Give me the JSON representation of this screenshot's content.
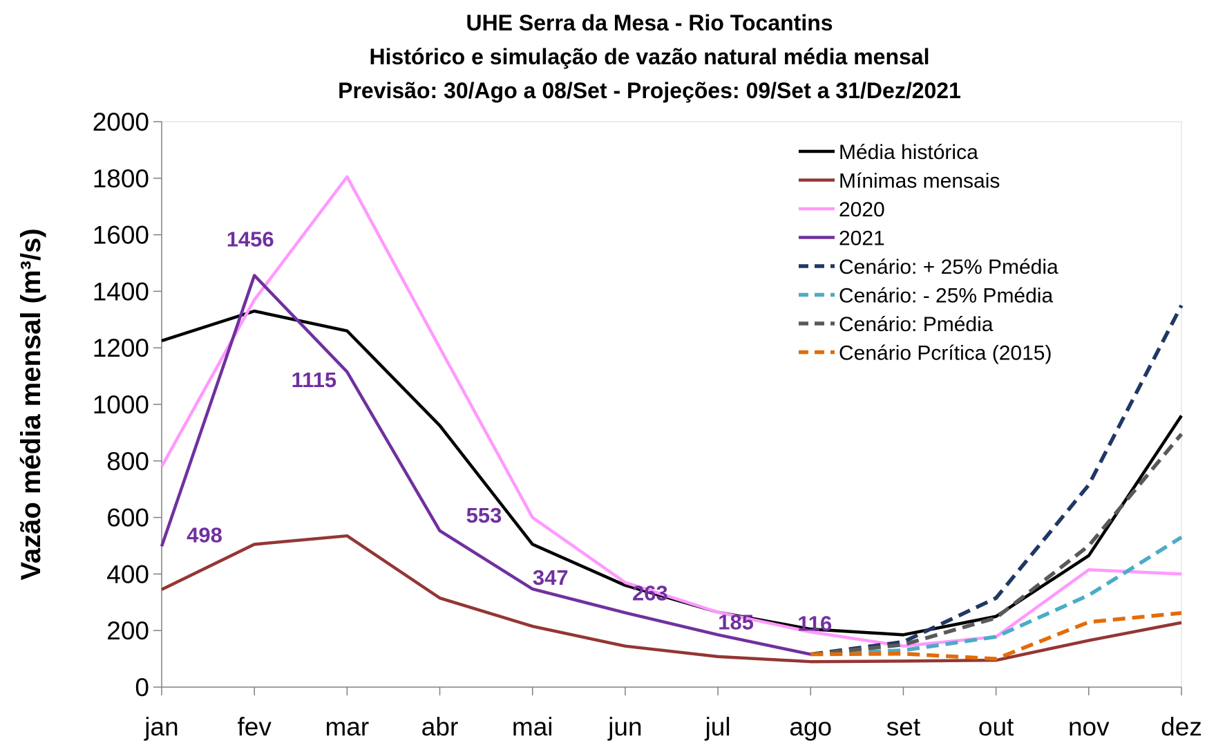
{
  "chart_data": {
    "type": "line",
    "title": [
      "UHE Serra da Mesa - Rio Tocantins",
      "Histórico e simulação de vazão natural média mensal",
      "Previsão: 30/Ago a 08/Set - Projeções:  09/Set a 31/Dez/2021"
    ],
    "xlabel": "",
    "ylabel": "Vazão média mensal (m³/s)",
    "ylim": [
      0,
      2000
    ],
    "yticks": [
      "0",
      "200",
      "400",
      "600",
      "800",
      "1000",
      "1200",
      "1400",
      "1600",
      "1800",
      "2000"
    ],
    "categories": [
      "jan",
      "fev",
      "mar",
      "abr",
      "mai",
      "jun",
      "jul",
      "ago",
      "set",
      "out",
      "nov",
      "dez"
    ],
    "legend_position": "top-right",
    "grid": false,
    "series": [
      {
        "name": "Média histórica",
        "color": "#000000",
        "dash": "solid",
        "values": [
          1225,
          1330,
          1260,
          925,
          505,
          360,
          265,
          205,
          185,
          250,
          465,
          960
        ]
      },
      {
        "name": "Mínimas mensais",
        "color": "#943634",
        "dash": "solid",
        "values": [
          345,
          505,
          535,
          315,
          215,
          145,
          108,
          90,
          92,
          95,
          165,
          228
        ]
      },
      {
        "name": "2020",
        "color": "#ff99ff",
        "dash": "solid",
        "values": [
          780,
          1370,
          1805,
          1200,
          600,
          370,
          265,
          195,
          145,
          178,
          415,
          400
        ]
      },
      {
        "name": "2021",
        "color": "#7030a0",
        "dash": "solid",
        "values": [
          498,
          1456,
          1115,
          553,
          347,
          263,
          185,
          116,
          null,
          null,
          null,
          null
        ]
      },
      {
        "name": "Cenário: + 25% Pmédia",
        "color": "#1f3864",
        "dash": "dashed",
        "values": [
          null,
          null,
          null,
          null,
          null,
          null,
          null,
          116,
          160,
          315,
          715,
          1350
        ]
      },
      {
        "name": "Cenário: - 25% Pmédia",
        "color": "#4bacc6",
        "dash": "dashed",
        "values": [
          null,
          null,
          null,
          null,
          null,
          null,
          null,
          116,
          130,
          178,
          325,
          530
        ]
      },
      {
        "name": "Cenário: Pmédia",
        "color": "#595959",
        "dash": "dashed",
        "values": [
          null,
          null,
          null,
          null,
          null,
          null,
          null,
          116,
          150,
          245,
          500,
          895
        ]
      },
      {
        "name": "Cenário Pcrítica (2015)",
        "color": "#e36c09",
        "dash": "dashed",
        "values": [
          null,
          null,
          null,
          null,
          null,
          null,
          null,
          116,
          118,
          100,
          230,
          262
        ]
      }
    ],
    "annotations": [
      {
        "text": "498",
        "series": "2021",
        "category": "jan"
      },
      {
        "text": "1456",
        "series": "2021",
        "category": "fev"
      },
      {
        "text": "1115",
        "series": "2021",
        "category": "mar"
      },
      {
        "text": "553",
        "series": "2021",
        "category": "abr"
      },
      {
        "text": "347",
        "series": "2021",
        "category": "mai"
      },
      {
        "text": "263",
        "series": "2021",
        "category": "jun"
      },
      {
        "text": "185",
        "series": "2021",
        "category": "jul"
      },
      {
        "text": "116",
        "series": "2021",
        "category": "ago"
      }
    ],
    "annotation_color": "#7030a0"
  }
}
